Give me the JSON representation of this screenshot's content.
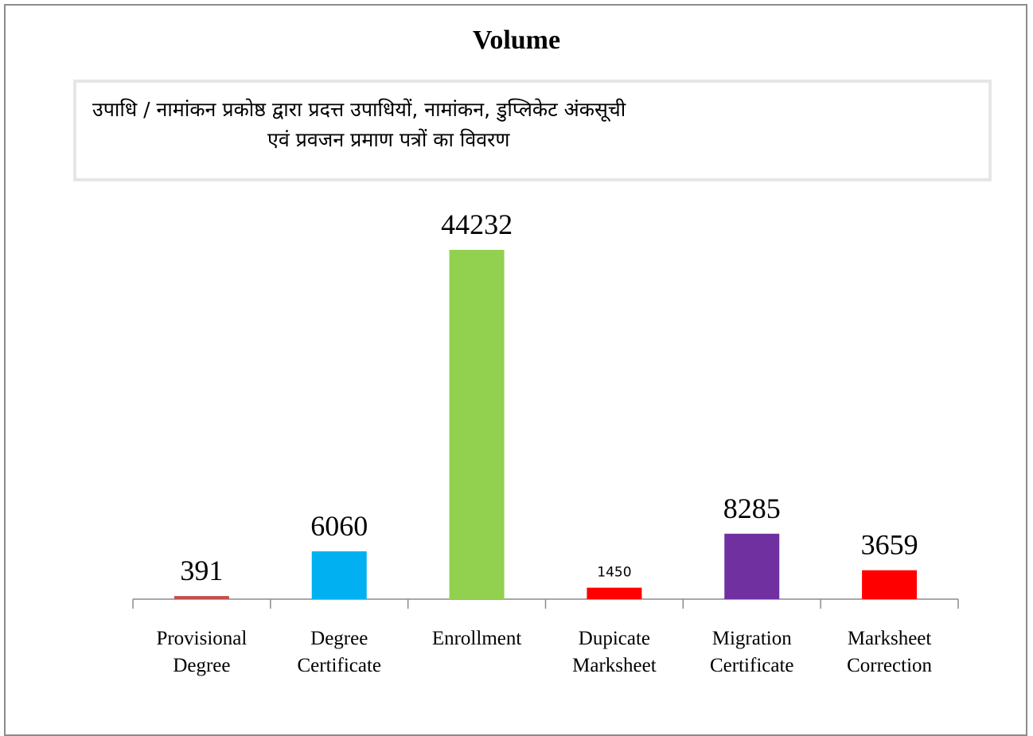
{
  "chart_data": {
    "type": "bar",
    "title": "Volume",
    "subtitle": [
      "उपाधि / नामांकन प्रकोष्ठ द्वारा प्रदत्त उपाधियों, नामांकन, डुप्लिकेट अंकसूची",
      "एवं प्रवजन प्रमाण पत्रों का विवरण"
    ],
    "categories": [
      "Provisional Degree",
      "Degree Certificate",
      "Enrollment",
      "Dupicate Marksheet",
      "Migration Certificate",
      "Marksheet Correction"
    ],
    "values": [
      391,
      6060,
      44232,
      1450,
      8285,
      3659
    ],
    "colors": [
      "#c0504d",
      "#00b0f0",
      "#92d050",
      "#ff0000",
      "#7030a0",
      "#ff0000"
    ]
  }
}
